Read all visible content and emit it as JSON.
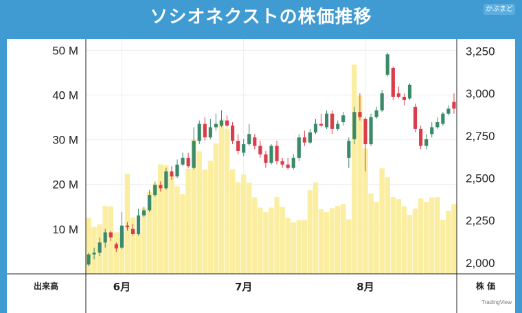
{
  "title": "ソシオネクストの株価推移",
  "logo_text": "かぶまど",
  "left_axis_label": "出来高",
  "right_axis_label": "株 価",
  "watermark": "TradingView",
  "colors": {
    "up": "#3a8a6a",
    "down": "#dc3c4a",
    "volume": "#fbeea0",
    "frame": "#3f9bd1"
  },
  "chart_data": {
    "type": "candlestick+bar",
    "x_ticks": [
      "6月",
      "7月",
      "8月"
    ],
    "volume_axis": {
      "ticks": [
        "10 M",
        "20 M",
        "30 M",
        "40 M",
        "50 M"
      ],
      "tick_values": [
        10,
        20,
        30,
        40,
        50
      ],
      "ylim": [
        0,
        52.5
      ],
      "unit": "M"
    },
    "price_axis": {
      "ticks": [
        "2,000",
        "2,250",
        "2,500",
        "2,750",
        "3,000",
        "3,250"
      ],
      "tick_values": [
        2000,
        2250,
        2500,
        2750,
        3000,
        3250
      ],
      "ylim": [
        1935,
        3320
      ]
    },
    "candles": [
      [
        1990,
        2050,
        1980,
        2060
      ],
      [
        2050,
        2060,
        2020,
        2090
      ],
      [
        2060,
        2120,
        2040,
        2150
      ],
      [
        2120,
        2180,
        2090,
        2200
      ],
      [
        2180,
        2150,
        2130,
        2190
      ],
      [
        2110,
        2085,
        2065,
        2120
      ],
      [
        2090,
        2220,
        2080,
        2300
      ],
      [
        2220,
        2210,
        2190,
        2240
      ],
      [
        2200,
        2170,
        2160,
        2230
      ],
      [
        2170,
        2280,
        2160,
        2320
      ],
      [
        2280,
        2310,
        2270,
        2330
      ],
      [
        2310,
        2400,
        2300,
        2430
      ],
      [
        2400,
        2460,
        2390,
        2480
      ],
      [
        2460,
        2440,
        2420,
        2480
      ],
      [
        2440,
        2540,
        2430,
        2560
      ],
      [
        2540,
        2510,
        2490,
        2570
      ],
      [
        2510,
        2580,
        2500,
        2610
      ],
      [
        2580,
        2620,
        2570,
        2650
      ],
      [
        2620,
        2570,
        2560,
        2650
      ],
      [
        2560,
        2720,
        2550,
        2800
      ],
      [
        2720,
        2820,
        2700,
        2840
      ],
      [
        2820,
        2740,
        2720,
        2860
      ],
      [
        2740,
        2800,
        2730,
        2850
      ],
      [
        2800,
        2820,
        2780,
        2880
      ],
      [
        2810,
        2840,
        2800,
        2900
      ],
      [
        2840,
        2810,
        2800,
        2870
      ],
      [
        2810,
        2720,
        2700,
        2830
      ],
      [
        2720,
        2660,
        2640,
        2760
      ],
      [
        2650,
        2700,
        2630,
        2730
      ],
      [
        2700,
        2760,
        2690,
        2820
      ],
      [
        2740,
        2690,
        2670,
        2760
      ],
      [
        2690,
        2640,
        2620,
        2720
      ],
      [
        2640,
        2590,
        2560,
        2660
      ],
      [
        2590,
        2690,
        2580,
        2700
      ],
      [
        2690,
        2600,
        2580,
        2720
      ],
      [
        2600,
        2580,
        2560,
        2620
      ],
      [
        2580,
        2560,
        2550,
        2620
      ],
      [
        2560,
        2620,
        2550,
        2640
      ],
      [
        2620,
        2740,
        2600,
        2760
      ],
      [
        2740,
        2710,
        2690,
        2780
      ],
      [
        2710,
        2770,
        2700,
        2790
      ],
      [
        2770,
        2820,
        2760,
        2850
      ],
      [
        2820,
        2810,
        2800,
        2880
      ],
      [
        2800,
        2880,
        2790,
        2900
      ],
      [
        2880,
        2790,
        2760,
        2900
      ],
      [
        2790,
        2820,
        2780,
        2840
      ],
      [
        2830,
        2870,
        2810,
        2890
      ],
      [
        2620,
        2720,
        2560,
        2740
      ],
      [
        2730,
        2890,
        2700,
        2920
      ],
      [
        2890,
        2860,
        2840,
        3000
      ],
      [
        2850,
        2700,
        2540,
        2860
      ],
      [
        2700,
        2860,
        2690,
        2880
      ],
      [
        2860,
        2900,
        2850,
        2920
      ],
      [
        2900,
        3000,
        2890,
        3020
      ],
      [
        3110,
        3230,
        3100,
        3240
      ],
      [
        3150,
        2980,
        2960,
        3160
      ],
      [
        3000,
        2980,
        2970,
        3040
      ],
      [
        2980,
        2960,
        2930,
        3000
      ],
      [
        2970,
        3050,
        2960,
        3060
      ],
      [
        2920,
        2790,
        2770,
        2940
      ],
      [
        2790,
        2690,
        2670,
        2810
      ],
      [
        2690,
        2730,
        2670,
        2760
      ],
      [
        2760,
        2800,
        2740,
        2830
      ],
      [
        2800,
        2830,
        2790,
        2860
      ],
      [
        2820,
        2880,
        2810,
        2890
      ],
      [
        2880,
        2910,
        2870,
        2930
      ],
      [
        2950,
        2910,
        2880,
        3000
      ]
    ],
    "volume": [
      12.6,
      10.5,
      11.1,
      15.2,
      15.1,
      9.3,
      9.2,
      22.4,
      12.6,
      9.1,
      14.8,
      18.3,
      20.2,
      24.5,
      24.3,
      22.2,
      19.6,
      17.8,
      23.5,
      30.1,
      27.4,
      23.3,
      25.3,
      29.2,
      34.6,
      32.5,
      23.4,
      20.5,
      22.2,
      20.4,
      17.1,
      14.8,
      13.8,
      14.8,
      17.2,
      15.0,
      12.5,
      11.5,
      12.0,
      12.0,
      18.7,
      20.5,
      14.5,
      13.8,
      14.7,
      15.2,
      15.6,
      12.2,
      46.8,
      39.8,
      28.1,
      18.0,
      16.1,
      23.6,
      21.6,
      17.2,
      16.7,
      15.1,
      13.2,
      14.6,
      16.9,
      16.1,
      17.1,
      17.2,
      12.1,
      14.1,
      15.6
    ]
  }
}
